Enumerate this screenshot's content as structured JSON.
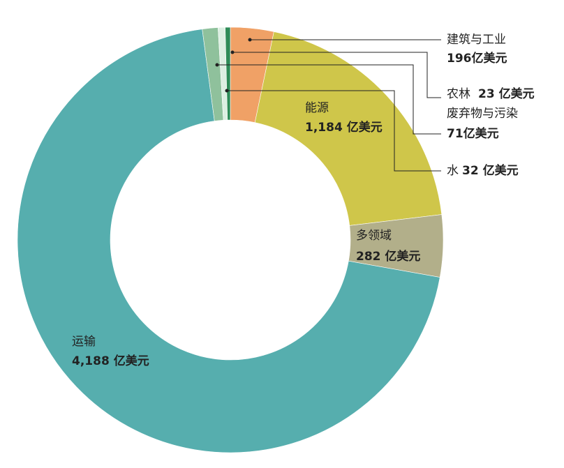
{
  "chart_data": {
    "type": "donut",
    "categories": [
      "建筑与工业",
      "能源",
      "多领域",
      "运输",
      "废弃物与污染",
      "水",
      "农林"
    ],
    "values": [
      196,
      1184,
      282,
      4188,
      71,
      32,
      23
    ],
    "value_labels": [
      "196亿美元",
      "1,184 亿美元",
      "282 亿美元",
      "4,188 亿美元",
      "71亿美元",
      "32 亿美元",
      "23 亿美元"
    ],
    "colors": [
      "#f0a166",
      "#cfc64a",
      "#b2af8a",
      "#56aeae",
      "#8fc19c",
      "#dcefe2",
      "#2e8b57"
    ]
  }
}
